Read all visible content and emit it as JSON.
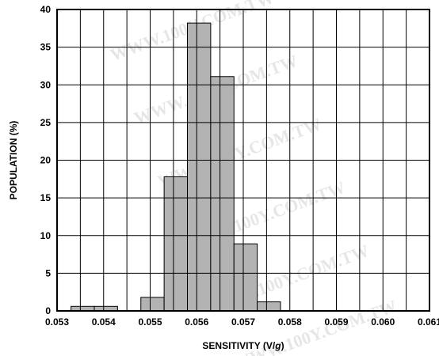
{
  "chart_data": {
    "type": "bar",
    "title": "",
    "xlabel": "SENSITIVITY (V/g)",
    "ylabel": "POPULATION (%)",
    "xlim": [
      0.053,
      0.061
    ],
    "ylim": [
      0,
      40
    ],
    "x_ticks": [
      "0.053",
      "0.054",
      "0.055",
      "0.056",
      "0.057",
      "0.058",
      "0.059",
      "0.060",
      "0.061"
    ],
    "y_ticks": [
      "0",
      "5",
      "10",
      "15",
      "20",
      "25",
      "30",
      "35",
      "40"
    ],
    "grid": true,
    "bins": [
      {
        "start": 0.0533,
        "end": 0.0538,
        "value": 0.6
      },
      {
        "start": 0.0538,
        "end": 0.0543,
        "value": 0.6
      },
      {
        "start": 0.0543,
        "end": 0.0548,
        "value": 0
      },
      {
        "start": 0.0548,
        "end": 0.0553,
        "value": 1.8
      },
      {
        "start": 0.0553,
        "end": 0.0558,
        "value": 17.8
      },
      {
        "start": 0.0558,
        "end": 0.0563,
        "value": 38.2
      },
      {
        "start": 0.0563,
        "end": 0.0568,
        "value": 31.1
      },
      {
        "start": 0.0568,
        "end": 0.0573,
        "value": 8.9
      },
      {
        "start": 0.0573,
        "end": 0.0578,
        "value": 1.2
      }
    ],
    "colors": {
      "bar_fill": "#b3b3b3",
      "bar_stroke": "#000000",
      "grid": "#000000",
      "watermark": "#e6e6e6"
    }
  },
  "watermark": "WWW.100Y.COM.TW"
}
